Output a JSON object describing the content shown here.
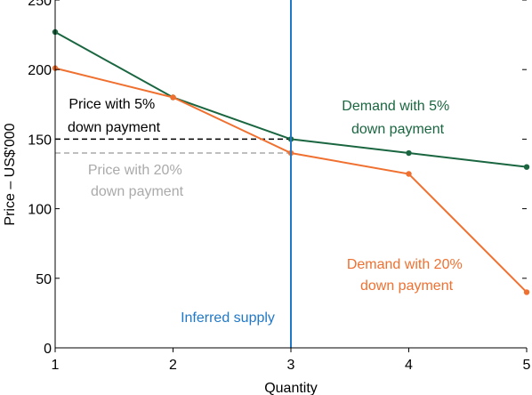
{
  "chart_data": {
    "type": "line",
    "title": "",
    "xlabel": "Quantity",
    "ylabel": "Price – US$'000",
    "xlim": [
      1,
      5
    ],
    "ylim": [
      0,
      250
    ],
    "x_ticks": [
      "1",
      "2",
      "3",
      "4",
      "5"
    ],
    "y_ticks": [
      "0",
      "50",
      "100",
      "150",
      "200",
      "250"
    ],
    "grid": false,
    "x": [
      1,
      2,
      3,
      4,
      5
    ],
    "series": [
      {
        "name": "Demand with 5% down payment",
        "color": "#1a6640",
        "values": [
          227,
          180,
          150,
          140,
          130
        ]
      },
      {
        "name": "Demand with 20% down payment",
        "color": "#f07030",
        "values": [
          201,
          180,
          140,
          125,
          40
        ]
      }
    ],
    "supply": {
      "name": "Inferred supply",
      "x": 3,
      "color": "#1f78c8"
    },
    "price_lines": [
      {
        "name": "Price with 5% down payment",
        "y": 150,
        "color": "#000000"
      },
      {
        "name": "Price with 20% down payment",
        "y": 140,
        "color": "#aaaaaa"
      }
    ],
    "annotations": {
      "demand_5": [
        "Demand with 5%",
        "down payment"
      ],
      "demand_20": [
        "Demand with 20%",
        "down payment"
      ],
      "price_5": [
        "Price with 5%",
        "down payment"
      ],
      "price_20": [
        "Price with 20%",
        "down payment"
      ],
      "supply": "Inferred supply"
    }
  }
}
